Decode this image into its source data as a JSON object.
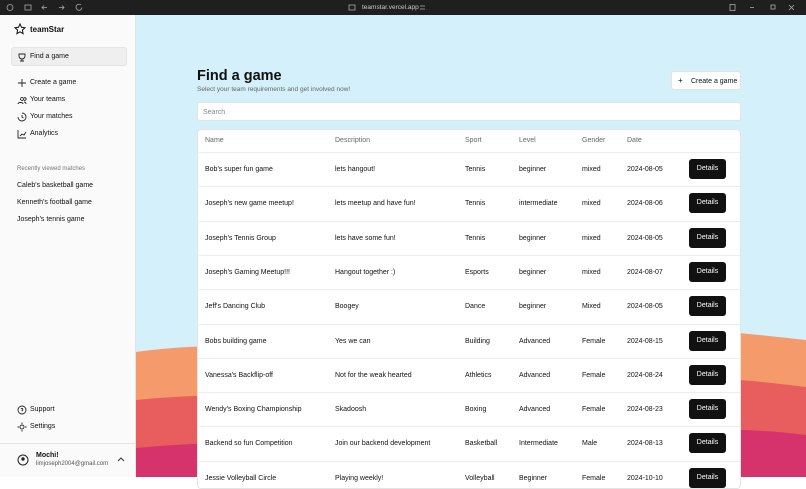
{
  "browser": {
    "url": "teamstar.vercel.app"
  },
  "sidebar": {
    "brand": "teamStar",
    "nav": [
      "Find a game",
      "Create a game",
      "Your teams",
      "Your matches",
      "Analytics"
    ],
    "recent_title": "Recently viewed matches",
    "recent": [
      "Caleb's basketball game",
      "Kenneth's football game",
      "Joseph's tennis game"
    ],
    "footer": [
      "Support",
      "Settings"
    ],
    "user": {
      "name": "Mochi!",
      "email": "limjoseph2004@gmail.com"
    }
  },
  "header": {
    "title": "Find a game",
    "subtitle": "Select your team requirements and get involved now!",
    "button": "Create a game"
  },
  "search": {
    "placeholder": "Search"
  },
  "table": {
    "columns": [
      "Name",
      "Description",
      "Sport",
      "Level",
      "Gender",
      "Date"
    ],
    "action": "Details",
    "rows": [
      [
        "Bob's super fun game",
        "lets hangout!",
        "Tennis",
        "beginner",
        "mixed",
        "2024-08-05"
      ],
      [
        "Joseph's new game meetup!",
        "lets meetup and have fun!",
        "Tennis",
        "intermediate",
        "mixed",
        "2024-08-06"
      ],
      [
        "Joseph's Tennis Group",
        "lets have some fun!",
        "Tennis",
        "beginner",
        "mixed",
        "2024-08-05"
      ],
      [
        "Joseph's Gaming Meetup!!!",
        "Hangout together :)",
        "Esports",
        "beginner",
        "mixed",
        "2024-08-07"
      ],
      [
        "Jeff's Dancing Club",
        "Boogey",
        "Dance",
        "beginner",
        "Mixed",
        "2024-08-05"
      ],
      [
        "Bobs building game",
        "Yes we can",
        "Building",
        "Advanced",
        "Female",
        "2024-08-15"
      ],
      [
        "Vanessa's Backflip-off",
        "Not for the weak hearted",
        "Athletics",
        "Advanced",
        "Female",
        "2024-08-24"
      ],
      [
        "Wendy's Boxing Championship",
        "Skadoosh",
        "Boxing",
        "Advanced",
        "Female",
        "2024-08-23"
      ],
      [
        "Backend so fun Competition",
        "Join our backend development",
        "Basketball",
        "Intermediate",
        "Male",
        "2024-08-13"
      ],
      [
        "Jessie Volleyball Circle",
        "Playing weekly!",
        "Volleyball",
        "Beginner",
        "Female",
        "2024-10-10"
      ]
    ]
  }
}
